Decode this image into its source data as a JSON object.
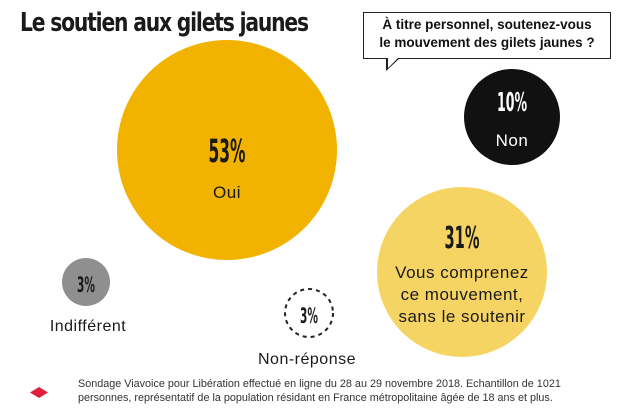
{
  "chart_data": {
    "type": "bubble",
    "title": "Le soutien aux gilets jaunes",
    "question": [
      "À titre personnel, soutenez-vous",
      "le mouvement des gilets jaunes ?"
    ],
    "series": [
      {
        "name": "Oui",
        "value": 53,
        "label": "53%",
        "caption": [
          "Oui"
        ],
        "color": "#f2b200"
      },
      {
        "name": "Vous comprenez ce mouvement, sans le soutenir",
        "value": 31,
        "label": "31%",
        "caption": [
          "Vous comprenez",
          "ce mouvement,",
          "sans le soutenir"
        ],
        "color": "#f5d463"
      },
      {
        "name": "Non",
        "value": 10,
        "label": "10%",
        "caption": [
          "Non"
        ],
        "color": "#111111"
      },
      {
        "name": "Indifférent",
        "value": 3,
        "label": "3%",
        "caption": [
          "Indifférent"
        ],
        "color": "#8f8f8f"
      },
      {
        "name": "Non-réponse",
        "value": 3,
        "label": "3%",
        "caption": [
          "Non-réponse"
        ],
        "color": "#ffffff"
      }
    ]
  },
  "footer": [
    "Sondage Viavoice pour Libération effectué en ligne du 28 au 29 novembre 2018. Echantillon de 1021",
    "personnes, représentatif de la population résidant en France métropolitaine âgée de 18 ans et plus."
  ],
  "colors": {
    "footer_mark": "#e0203a",
    "text_dark": "#1a1a1a"
  }
}
